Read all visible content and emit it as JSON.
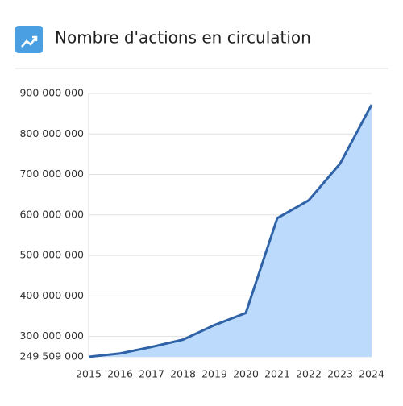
{
  "chart_data": {
    "type": "area",
    "title": "Nombre d'actions en circulation",
    "categories": [
      "2015",
      "2016",
      "2017",
      "2018",
      "2019",
      "2020",
      "2021",
      "2022",
      "2023",
      "2024"
    ],
    "values": [
      249509000,
      258000000,
      274000000,
      292000000,
      328000000,
      358000000,
      592000000,
      636000000,
      727000000,
      872000000
    ],
    "color": "#2f62a6",
    "fill_color": "#bcdafb",
    "ylim": [
      249509000,
      900000000
    ],
    "yticks": [
      {
        "value": 249509000,
        "label": "249 509 000"
      },
      {
        "value": 300000000,
        "label": "300 000 000"
      },
      {
        "value": 400000000,
        "label": "400 000 000"
      },
      {
        "value": 500000000,
        "label": "500 000 000"
      },
      {
        "value": 600000000,
        "label": "600 000 000"
      },
      {
        "value": 700000000,
        "label": "700 000 000"
      },
      {
        "value": 800000000,
        "label": "800 000 000"
      },
      {
        "value": 900000000,
        "label": "900 000 000"
      }
    ],
    "grid": true
  }
}
